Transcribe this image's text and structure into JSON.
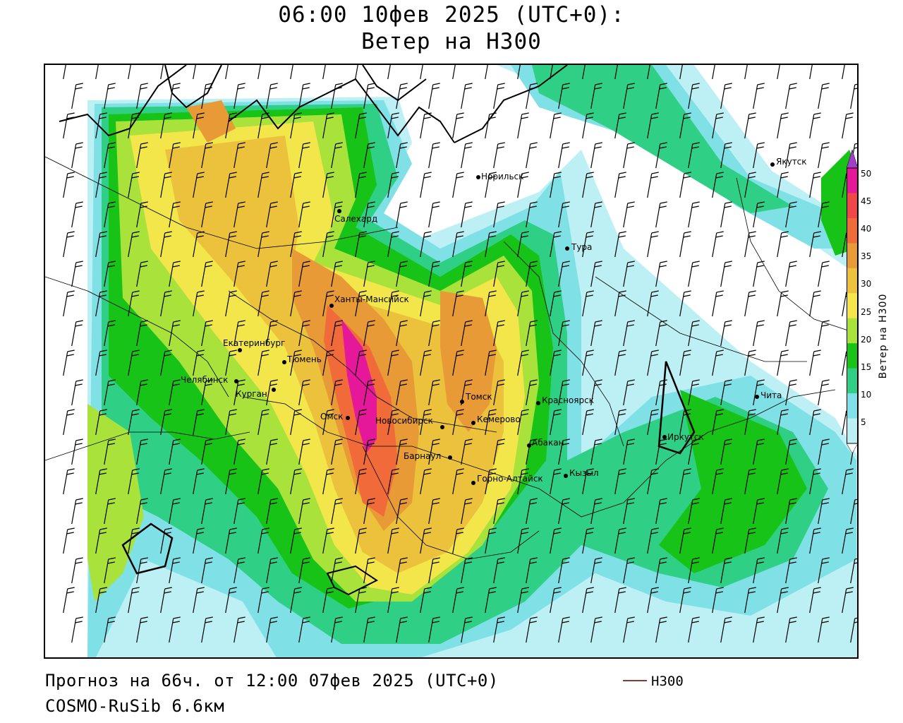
{
  "header": {
    "title_line1": "06:00 10фев 2025 (UTC+0):",
    "title_line2": "Ветер на H300"
  },
  "footer": {
    "forecast": "Прогноз на 66ч. от 12:00 07фев 2025 (UTC+0)",
    "model": "COSMO-RuSib 6.6км",
    "legend_label": "H300",
    "legend_color": "#8a3a2c"
  },
  "colorbar": {
    "label": "Ветер на H300",
    "ticks": [
      "5",
      "10",
      "15",
      "20",
      "25",
      "30",
      "35",
      "40",
      "45",
      "50"
    ],
    "colors": [
      "#ffffff",
      "#bdf0f5",
      "#7fe0e6",
      "#2fcf86",
      "#18c318",
      "#a8e23a",
      "#f2e64a",
      "#ecc23c",
      "#e89a36",
      "#f06a3a",
      "#f04848",
      "#e6189a",
      "#a040c8"
    ]
  },
  "cities": [
    {
      "name": "Якутск"
    },
    {
      "name": "Норильск"
    },
    {
      "name": "Салехард"
    },
    {
      "name": "Тура"
    },
    {
      "name": "Ханты-Мансийск"
    },
    {
      "name": "Екатеринбург"
    },
    {
      "name": "Тюмень"
    },
    {
      "name": "Челябинск"
    },
    {
      "name": "Курган"
    },
    {
      "name": "Омск"
    },
    {
      "name": "Новосибирск"
    },
    {
      "name": "Томск"
    },
    {
      "name": "Кемерово"
    },
    {
      "name": "Красноярск"
    },
    {
      "name": "Барнаул"
    },
    {
      "name": "Абакан"
    },
    {
      "name": "Горно-Алтайск"
    },
    {
      "name": "Кызыл"
    },
    {
      "name": "Иркутск"
    },
    {
      "name": "Чита"
    }
  ]
}
